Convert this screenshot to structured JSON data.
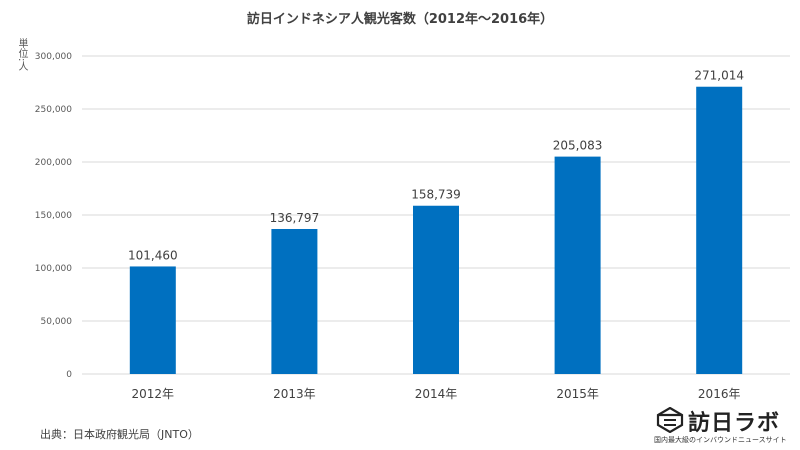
{
  "chart_data": {
    "type": "bar",
    "title": "訪日インドネシア人観光客数（2012年～2016年）",
    "unit_label": "単位:人",
    "categories": [
      "2012年",
      "2013年",
      "2014年",
      "2015年",
      "2016年"
    ],
    "values": [
      101460,
      136797,
      158739,
      205083,
      271014
    ],
    "data_labels": [
      "101,460",
      "136,797",
      "158,739",
      "205,083",
      "271,014"
    ],
    "ylim": [
      0,
      300000
    ],
    "yticks": [
      0,
      50000,
      100000,
      150000,
      200000,
      250000,
      300000
    ],
    "ytick_labels": [
      "0",
      "50,000",
      "100,000",
      "150,000",
      "200,000",
      "250,000",
      "300,000"
    ],
    "grid": true,
    "bar_color": "#0070C0"
  },
  "source": "出典：日本政府観光局（JNTO）",
  "logo": {
    "name": "訪日ラボ",
    "tagline": "国内最大級のインバウンドニュースサイト"
  }
}
